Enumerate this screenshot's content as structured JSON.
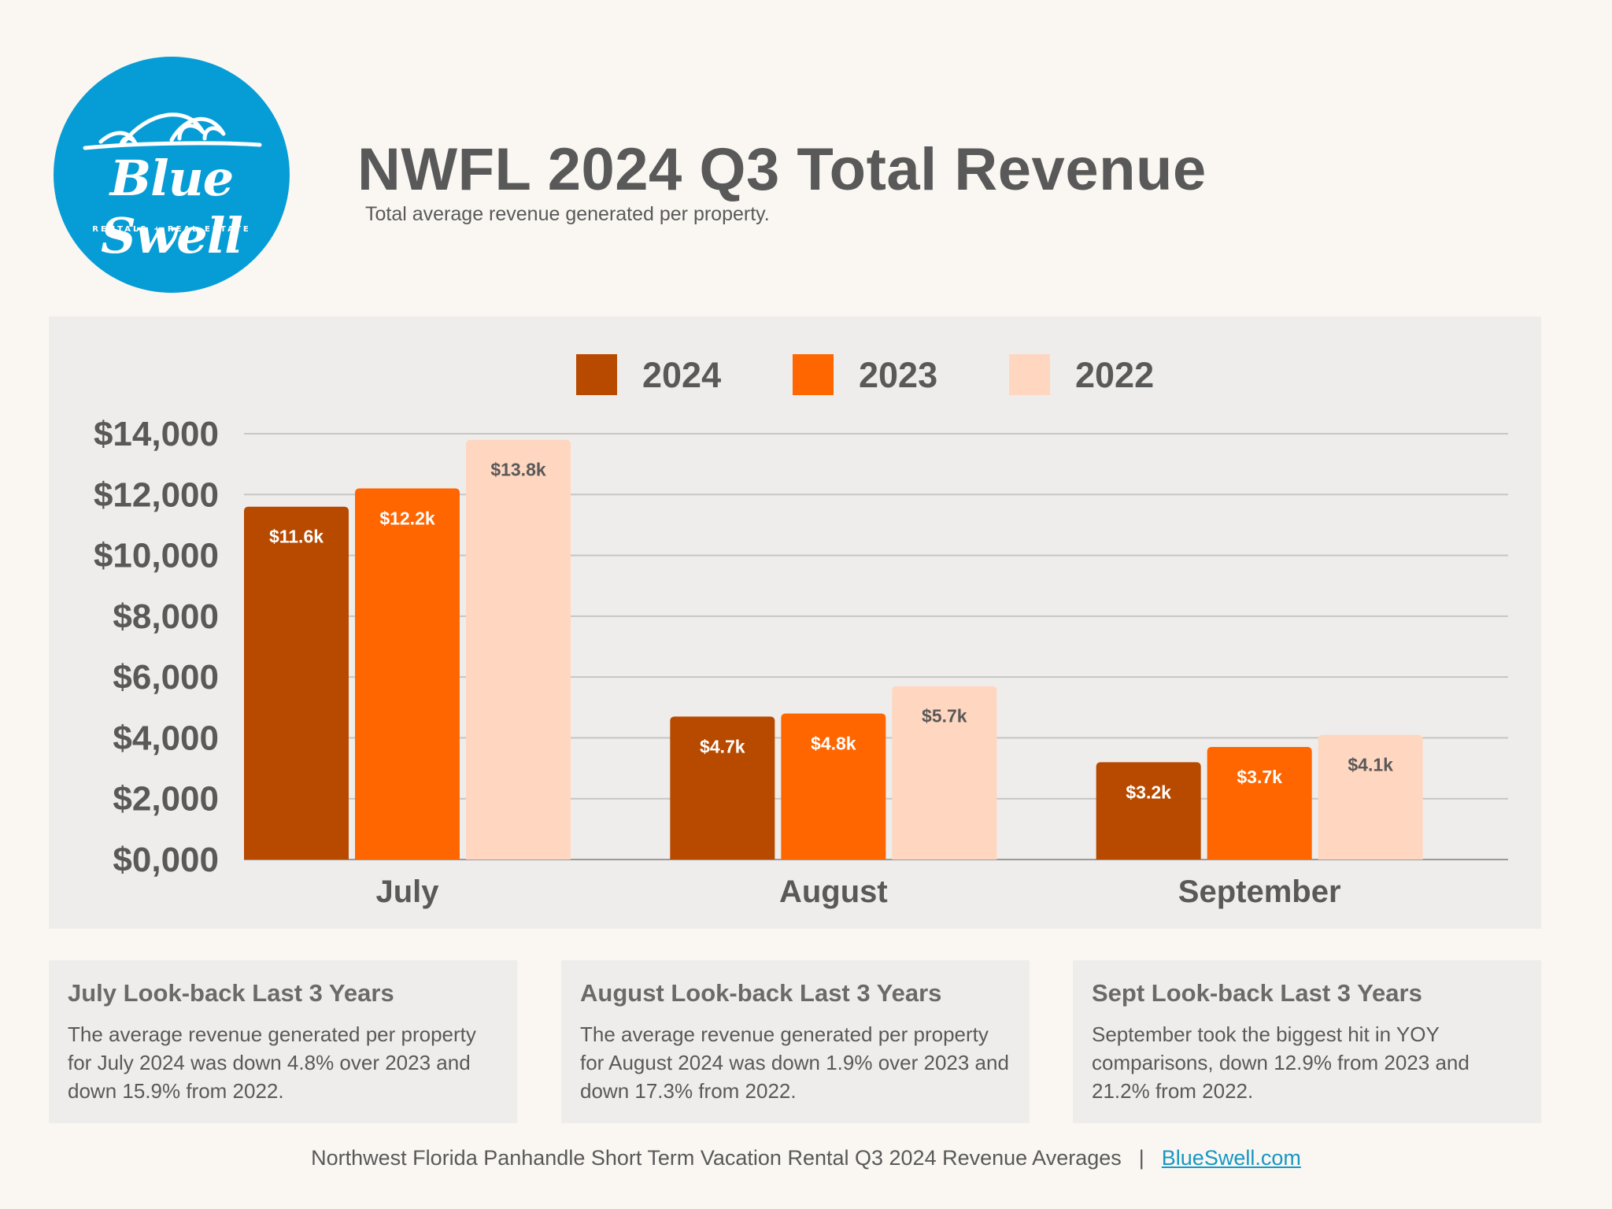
{
  "logo": {
    "brand": "Blue Swell",
    "tagline": "RENTALS + REAL ESTATE",
    "icon": "waves-icon",
    "color": "#069dd6"
  },
  "header": {
    "title": "NWFL 2024 Q3 Total Revenue",
    "subtitle": "Total average revenue generated per property."
  },
  "chart_data": {
    "type": "bar",
    "categories": [
      "July",
      "August",
      "September"
    ],
    "series": [
      {
        "name": "2024",
        "values": [
          11600,
          4700,
          3200
        ],
        "labels": [
          "$11.6k",
          "$4.7k",
          "$3.2k"
        ],
        "color": "#b84a00",
        "label_color": "#ffffff"
      },
      {
        "name": "2023",
        "values": [
          12200,
          4800,
          3700
        ],
        "labels": [
          "$12.2k",
          "$4.8k",
          "$3.7k"
        ],
        "color": "#ff6600",
        "label_color": "#ffffff"
      },
      {
        "name": "2022",
        "values": [
          13800,
          5700,
          4100
        ],
        "labels": [
          "$13.8k",
          "$5.7k",
          "$4.1k"
        ],
        "color": "#ffd6c0",
        "label_color": "#595959"
      }
    ],
    "y_ticks": [
      {
        "value": 0,
        "label": "$0,000"
      },
      {
        "value": 2000,
        "label": "$2,000"
      },
      {
        "value": 4000,
        "label": "$4,000"
      },
      {
        "value": 6000,
        "label": "$6,000"
      },
      {
        "value": 8000,
        "label": "$8,000"
      },
      {
        "value": 10000,
        "label": "$10,000"
      },
      {
        "value": 12000,
        "label": "$12,000"
      },
      {
        "value": 14000,
        "label": "$14,000"
      }
    ],
    "ylim": [
      0,
      14000
    ],
    "grid": true,
    "legend_position": "top-center",
    "title": "",
    "xlabel": "",
    "ylabel": ""
  },
  "cards": [
    {
      "title": "July Look-back Last 3 Years",
      "body": "The average revenue generated per property for July 2024 was down 4.8% over 2023 and down 15.9% from 2022."
    },
    {
      "title": "August Look-back Last 3 Years",
      "body": "The average revenue generated per property for August 2024 was down 1.9% over 2023 and down 17.3% from 2022."
    },
    {
      "title": "Sept Look-back Last 3 Years",
      "body": "September took the biggest hit in YOY comparisons, down 12.9% from 2023 and 21.2% from 2022."
    }
  ],
  "footer": {
    "text": "Northwest Florida Panhandle Short Term Vacation Rental Q3 2024 Revenue Averages",
    "separator": "|",
    "link": "BlueSwell.com"
  }
}
